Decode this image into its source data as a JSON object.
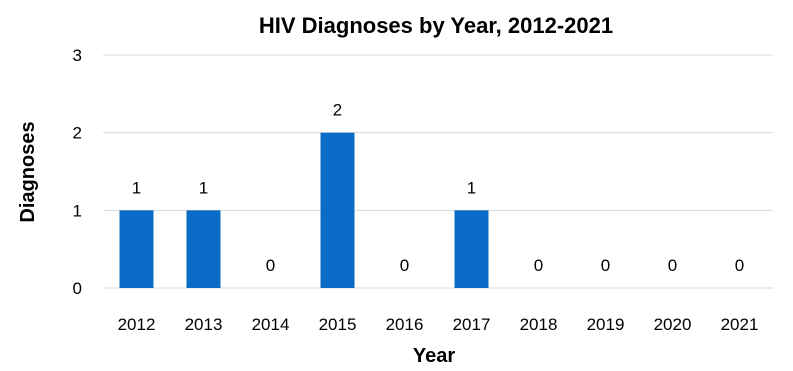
{
  "chart_data": {
    "type": "bar",
    "title": "HIV Diagnoses by Year, 2012-2021",
    "xlabel": "Year",
    "ylabel": "Diagnoses",
    "categories": [
      "2012",
      "2013",
      "2014",
      "2015",
      "2016",
      "2017",
      "2018",
      "2019",
      "2020",
      "2021"
    ],
    "values": [
      1,
      1,
      0,
      2,
      0,
      1,
      0,
      0,
      0,
      0
    ],
    "ylim": [
      0,
      3
    ],
    "yticks": [
      0,
      1,
      2,
      3
    ],
    "grid": true,
    "data_labels": true,
    "bar_color": "#0a6cc6"
  }
}
